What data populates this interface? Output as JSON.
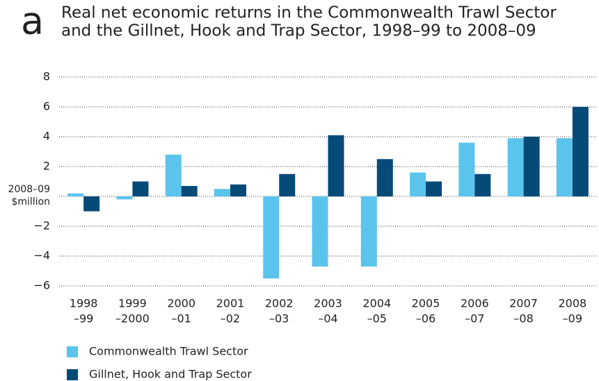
{
  "chart_data": {
    "type": "bar",
    "panel_label": "a",
    "title_lines": [
      "Real net economic returns in the Commonwealth Trawl Sector",
      "and the Gillnet, Hook and Trap Sector, 1998–99 to 2008–09"
    ],
    "ylabel_lines": [
      "2008–09",
      "$million"
    ],
    "categories": [
      [
        "1998",
        "–99"
      ],
      [
        "1999",
        "–2000"
      ],
      [
        "2000",
        "–01"
      ],
      [
        "2001",
        "–02"
      ],
      [
        "2002",
        "–03"
      ],
      [
        "2003",
        "–04"
      ],
      [
        "2004",
        "–05"
      ],
      [
        "2005",
        "–06"
      ],
      [
        "2006",
        "–07"
      ],
      [
        "2007",
        "–08"
      ],
      [
        "2008",
        "–09"
      ]
    ],
    "series": [
      {
        "name": "Commonwealth Trawl Sector",
        "color": "#5bc4ec",
        "values": [
          0.2,
          -0.2,
          2.8,
          0.5,
          -5.5,
          -4.7,
          -4.7,
          1.6,
          3.6,
          3.9,
          3.9
        ]
      },
      {
        "name": "Gillnet, Hook and Trap Sector",
        "color": "#064a78",
        "values": [
          -1.0,
          1.0,
          0.7,
          0.8,
          1.5,
          4.1,
          2.5,
          1.0,
          1.5,
          4.0,
          6.0
        ]
      }
    ],
    "ylim": [
      -6,
      8
    ],
    "yticks": [
      {
        "value": -6,
        "label": "−6"
      },
      {
        "value": -4,
        "label": "−4"
      },
      {
        "value": -2,
        "label": "−2"
      },
      2,
      4,
      6,
      8
    ],
    "grid": true
  }
}
